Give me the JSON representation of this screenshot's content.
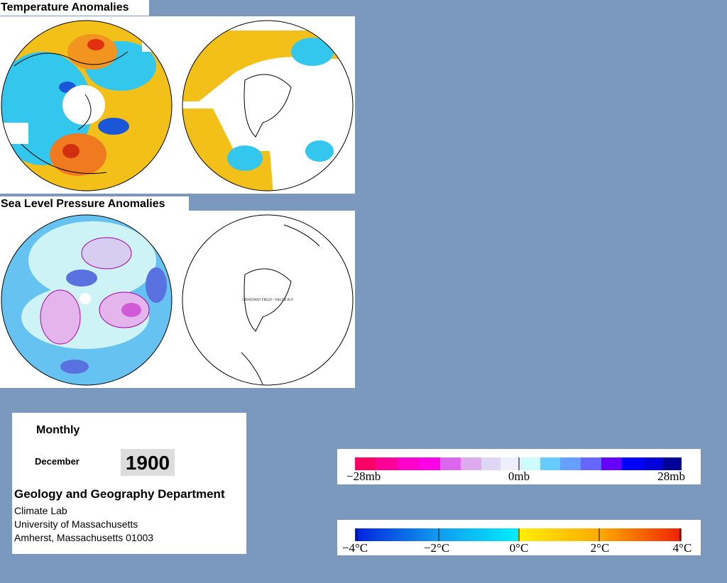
{
  "sections": {
    "temperature": {
      "title": "Temperature Anomalies"
    },
    "pressure": {
      "title": "Sea Level Pressure Anomalies",
      "note": "CONSTANT FIELD - VALUE IS 0"
    }
  },
  "info": {
    "period": "Monthly",
    "month": "December",
    "year": "1900",
    "department": "Geology and Geography Department",
    "address": [
      "Climate Lab",
      "University of Massachusetts",
      "Amherst, Massachusetts 01003"
    ]
  },
  "legends": {
    "pressure": [
      "−28mb",
      "0mb",
      "28mb"
    ],
    "temperature": [
      "−4°C",
      "−2°C",
      "0°C",
      "2°C",
      "4°C"
    ]
  }
}
